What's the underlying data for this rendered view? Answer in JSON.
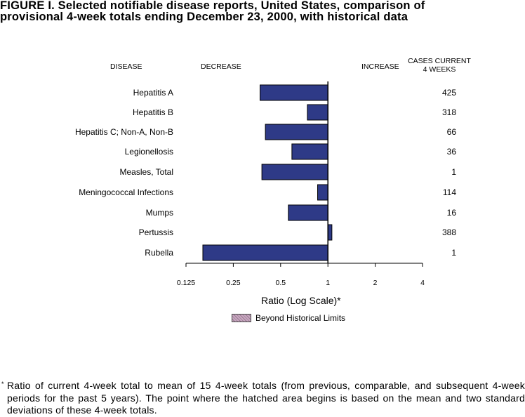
{
  "title_line1": "FIGURE I.  Selected notifiable disease reports, United States, comparison of",
  "title_line2": "provisional  4-week totals ending December 23, 2000, with historical  data",
  "headers": {
    "disease": "DISEASE",
    "decrease": "DECREASE",
    "increase": "INCREASE",
    "cases_line1": "CASES CURRENT",
    "cases_line2": "4 WEEKS"
  },
  "legend_label": "Beyond Historical Limits",
  "footnote_mark": "*",
  "footnote": "Ratio of current 4-week total to mean of 15 4-week totals (from previous, comparable, and subsequent 4-week periods for the past 5 years). The point where the hatched area begins is based on the mean and two standard deviations of these 4-week totals.",
  "colors": {
    "bar": "#2e3a87",
    "bar_border": "#000000",
    "hatch": "#b08aa8"
  },
  "chart_data": {
    "type": "bar",
    "orientation": "horizontal",
    "xscale": "log2",
    "xlabel": "Ratio (Log Scale)*",
    "xlim": [
      0.125,
      4
    ],
    "xticks": [
      0.125,
      0.25,
      0.5,
      1,
      2,
      4
    ],
    "xtick_labels": [
      "0.125",
      "0.25",
      "0.5",
      "1",
      "2",
      "4"
    ],
    "baseline": 1,
    "categories": [
      "Hepatitis A",
      "Hepatitis B",
      "Hepatitis C; Non-A, Non-B",
      "Legionellosis",
      "Measles, Total",
      "Meningococcal Infections",
      "Mumps",
      "Pertussis",
      "Rubella"
    ],
    "values": [
      0.37,
      0.74,
      0.4,
      0.59,
      0.38,
      0.86,
      0.56,
      1.06,
      0.16
    ],
    "cases_current_4_weeks": [
      "425",
      "318",
      "66",
      "36",
      "1",
      "114",
      "16",
      "388",
      "1"
    ],
    "beyond_historical_limits": []
  }
}
